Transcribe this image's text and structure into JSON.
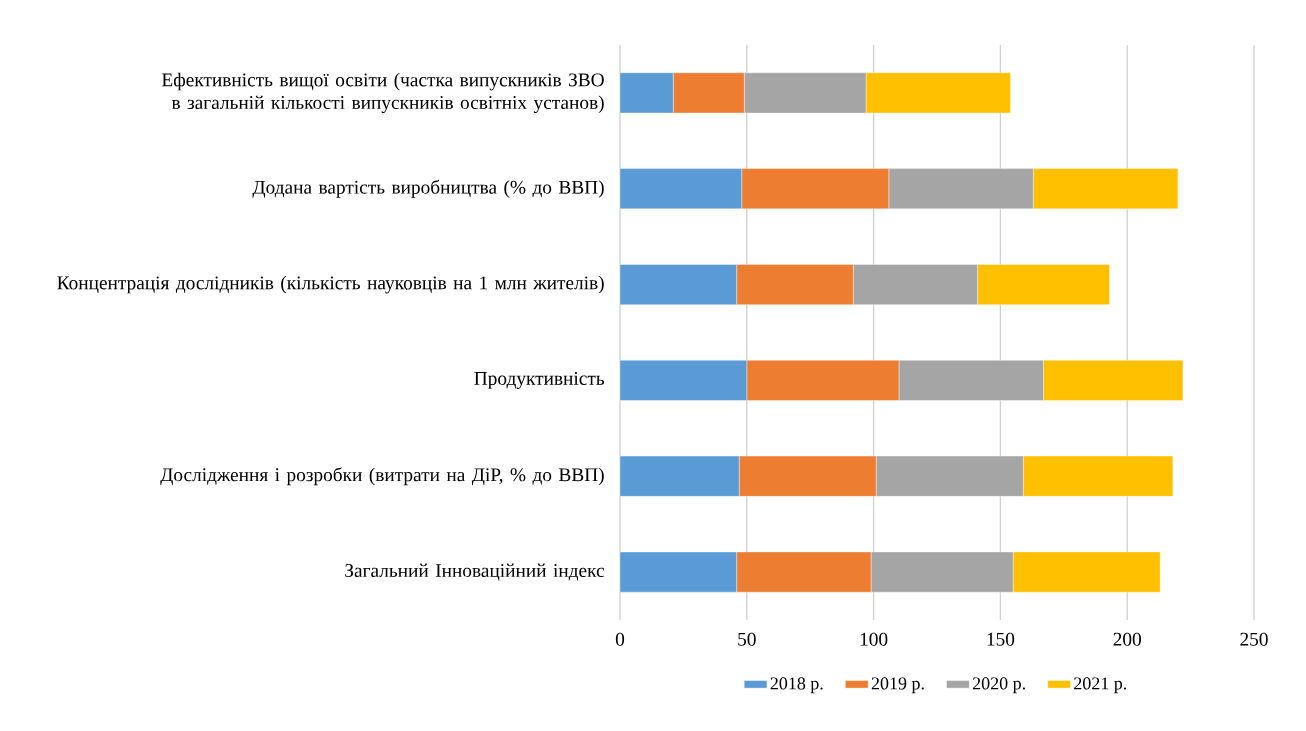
{
  "chart_data": {
    "type": "bar",
    "orientation": "horizontal",
    "stacked": true,
    "categories": [
      "Ефективність вищої освіти (частка випускників ЗВО в загальній кількості випускників освітніх установ)",
      "Додана вартість виробництва (% до ВВП)",
      "Концентрація дослідників (кількість науковців на 1 млн жителів)",
      "Продуктивність",
      "Дослідження і розробки (витрати на ДіР, % до ВВП)",
      "Загальний Інноваційний індекс"
    ],
    "series": [
      {
        "name": "2018 р.",
        "color": "#5b9bd5",
        "values": [
          21,
          48,
          46,
          50,
          47,
          46
        ]
      },
      {
        "name": "2019 р.",
        "color": "#ed7d31",
        "values": [
          28,
          58,
          46,
          60,
          54,
          53
        ]
      },
      {
        "name": "2020 р.",
        "color": "#a5a5a5",
        "values": [
          48,
          57,
          49,
          57,
          58,
          56
        ]
      },
      {
        "name": "2021 р.",
        "color": "#ffc000",
        "values": [
          57,
          57,
          52,
          55,
          59,
          58
        ]
      }
    ],
    "xlim": [
      0,
      250
    ],
    "xticks": [
      0,
      50,
      100,
      150,
      200,
      250
    ],
    "grid": "x",
    "legend": "bottom"
  }
}
